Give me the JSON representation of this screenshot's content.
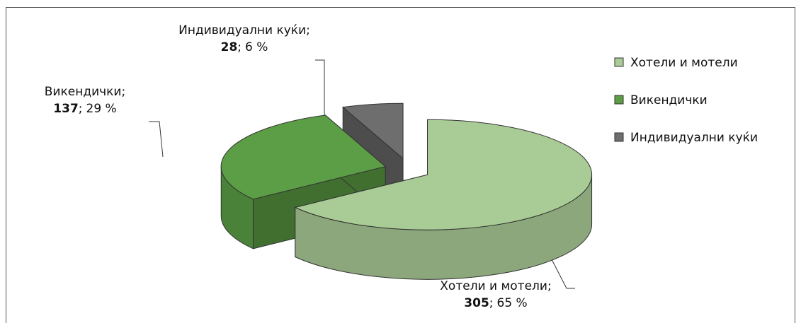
{
  "chart_data": {
    "type": "pie3d",
    "categories": [
      "Хотели и мотели",
      "Викендички",
      "Индивидуални куќи"
    ],
    "values": [
      305,
      137,
      28
    ],
    "percents": [
      65,
      29,
      6
    ],
    "percent_labels": [
      "65 %",
      "29 %",
      "6 %"
    ],
    "label_separator": ";",
    "colors": [
      "#a9cc96",
      "#5c9e45",
      "#6e6e6e"
    ],
    "legend": "right"
  }
}
